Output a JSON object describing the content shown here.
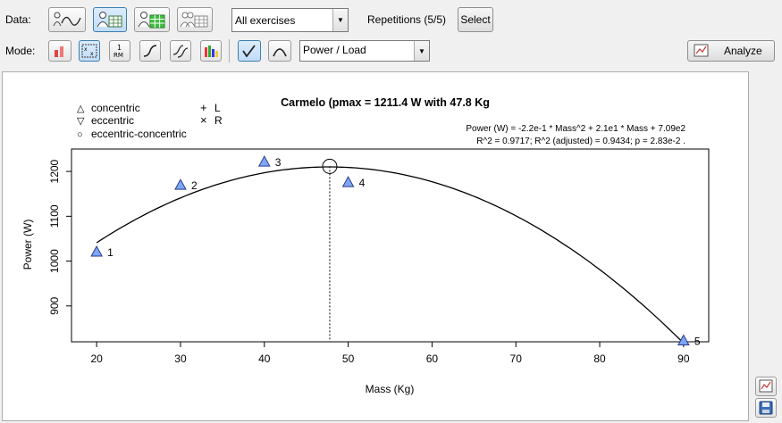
{
  "toolbar": {
    "data_label": "Data:",
    "mode_label": "Mode:",
    "exercise_select": "All exercises",
    "repetitions_label": "Repetitions (5/5)",
    "select_button": "Select",
    "mode_select": "Power / Load",
    "analyze_button": "Analyze"
  },
  "colors": {
    "marker_fill": "#7ea6f2",
    "marker_stroke": "#2a3b8f",
    "curve": "#000000",
    "accent_active": "#c1dcf7"
  },
  "legend": {
    "items": [
      {
        "symbol": "△",
        "label": "concentric"
      },
      {
        "symbol": "▽",
        "label": "eccentric"
      },
      {
        "symbol": "○",
        "label": "eccentric-concentric"
      }
    ],
    "side": [
      {
        "symbol": "+",
        "label": "L"
      },
      {
        "symbol": "×",
        "label": "R"
      }
    ]
  },
  "chart_data": {
    "type": "scatter",
    "title": "Carmelo (pmax = 1211.4 W with 47.8 Kg",
    "equation": "Power (W) = -2.2e-1 * Mass^2 + 2.1e1 * Mass + 7.09e2",
    "fit_stats": "R^2 = 0.9717; R^2 (adjusted) = 0.9434; p = 2.83e-2 .",
    "xlabel": "Mass (Kg)",
    "ylabel": "Power (W)",
    "xlim": [
      17,
      93
    ],
    "ylim": [
      820,
      1250
    ],
    "xticks": [
      20,
      30,
      40,
      50,
      60,
      70,
      80,
      90
    ],
    "yticks": [
      900,
      1000,
      1100,
      1200
    ],
    "points": [
      {
        "x": 20,
        "y": 1021,
        "label": "1"
      },
      {
        "x": 30,
        "y": 1170,
        "label": "2"
      },
      {
        "x": 40,
        "y": 1222,
        "label": "3"
      },
      {
        "x": 50,
        "y": 1176,
        "label": "4"
      },
      {
        "x": 90,
        "y": 823,
        "label": "5"
      }
    ],
    "fit": {
      "a": -0.22,
      "b": 21.0,
      "c": 709
    },
    "pmax": {
      "x": 47.8,
      "y": 1211.4
    },
    "grid": false
  }
}
